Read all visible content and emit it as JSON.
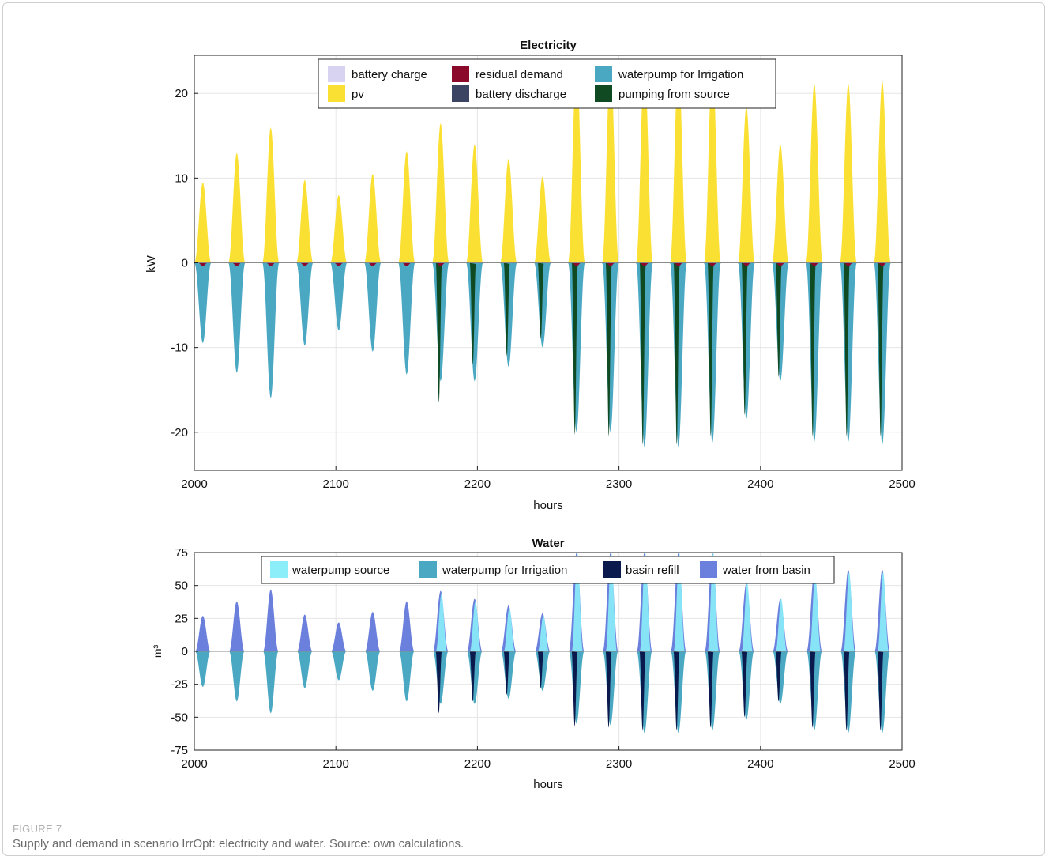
{
  "figure": {
    "label": "FIGURE 7",
    "caption": "Supply and demand in scenario IrrOpt: electricity and water. Source: own calculations."
  },
  "chart_data": [
    {
      "type": "area",
      "title": "Electricity",
      "xlabel": "hours",
      "ylabel": "kW",
      "xlim": [
        2000,
        2500
      ],
      "ylim": [
        -24.5,
        24.5
      ],
      "xticks": [
        2000,
        2100,
        2200,
        2300,
        2400,
        2500
      ],
      "yticks": [
        20,
        10,
        0,
        -10,
        -20
      ],
      "grid": true,
      "legend_position": "top-center",
      "colors": {
        "battery charge": "#d9d3f2",
        "residual demand": "#8b0a2c",
        "waterpump for Irrigation": "#4aa8c3",
        "pv": "#fbe034",
        "battery discharge": "#3b4463",
        "pumping from source": "#0f4a22"
      },
      "legend": [
        [
          "battery charge",
          "residual demand",
          "waterpump for Irrigation"
        ],
        [
          "pv",
          "battery discharge",
          "pumping from source"
        ]
      ],
      "days": [
        {
          "peak_hour": 2006,
          "pv": 9.5,
          "irrigation": -9.5,
          "source_pumping": 0,
          "residual_demand": -0.4
        },
        {
          "peak_hour": 2030,
          "pv": 13,
          "irrigation": -13,
          "source_pumping": 0,
          "residual_demand": -0.4
        },
        {
          "peak_hour": 2054,
          "pv": 16,
          "irrigation": -16,
          "source_pumping": 0,
          "residual_demand": -0.4
        },
        {
          "peak_hour": 2078,
          "pv": 9.8,
          "irrigation": -9.8,
          "source_pumping": 0,
          "residual_demand": -0.4
        },
        {
          "peak_hour": 2102,
          "pv": 8,
          "irrigation": -8,
          "source_pumping": 0,
          "residual_demand": -0.4
        },
        {
          "peak_hour": 2126,
          "pv": 10.5,
          "irrigation": -10.5,
          "source_pumping": 0,
          "residual_demand": -0.4
        },
        {
          "peak_hour": 2150,
          "pv": 13.2,
          "irrigation": -13.2,
          "source_pumping": 0,
          "residual_demand": -0.4
        },
        {
          "peak_hour": 2174,
          "pv": 16.5,
          "irrigation": -14,
          "source_pumping": -16.5,
          "residual_demand": -0.4
        },
        {
          "peak_hour": 2198,
          "pv": 14,
          "irrigation": -14,
          "source_pumping": -12,
          "residual_demand": 0
        },
        {
          "peak_hour": 2222,
          "pv": 12.3,
          "irrigation": -12.3,
          "source_pumping": -11,
          "residual_demand": 0
        },
        {
          "peak_hour": 2246,
          "pv": 10.2,
          "irrigation": -10,
          "source_pumping": -9,
          "residual_demand": 0
        },
        {
          "peak_hour": 2270,
          "pv": 24,
          "irrigation": -20,
          "source_pumping": -20.3,
          "residual_demand": -0.4
        },
        {
          "peak_hour": 2294,
          "pv": 24,
          "irrigation": -20,
          "source_pumping": -20.5,
          "residual_demand": -0.4
        },
        {
          "peak_hour": 2318,
          "pv": 24,
          "irrigation": -21.8,
          "source_pumping": -21.5,
          "residual_demand": -0.4
        },
        {
          "peak_hour": 2342,
          "pv": 24,
          "irrigation": -21.8,
          "source_pumping": -21.5,
          "residual_demand": -0.4
        },
        {
          "peak_hour": 2366,
          "pv": 24,
          "irrigation": -21.3,
          "source_pumping": -20.5,
          "residual_demand": -0.4
        },
        {
          "peak_hour": 2390,
          "pv": 18.5,
          "irrigation": -18.5,
          "source_pumping": -18,
          "residual_demand": -0.4
        },
        {
          "peak_hour": 2414,
          "pv": 14,
          "irrigation": -14,
          "source_pumping": -13.5,
          "residual_demand": -0.4
        },
        {
          "peak_hour": 2438,
          "pv": 21.2,
          "irrigation": -21.2,
          "source_pumping": -20.5,
          "residual_demand": -0.4
        },
        {
          "peak_hour": 2462,
          "pv": 21.2,
          "irrigation": -21.2,
          "source_pumping": -20.5,
          "residual_demand": -0.4
        },
        {
          "peak_hour": 2486,
          "pv": 21.5,
          "irrigation": -21.5,
          "source_pumping": -20.5,
          "residual_demand": -0.4
        }
      ]
    },
    {
      "type": "area",
      "title": "Water",
      "xlabel": "hours",
      "ylabel": "m³",
      "xlim": [
        2000,
        2500
      ],
      "ylim": [
        -75,
        75
      ],
      "xticks": [
        2000,
        2100,
        2200,
        2300,
        2400,
        2500
      ],
      "yticks": [
        75,
        50,
        25,
        0,
        -25,
        -50,
        -75
      ],
      "grid": true,
      "legend_position": "top-center",
      "colors": {
        "waterpump source": "#8beef8",
        "waterpump for Irrigation": "#4aa8c3",
        "basin refill": "#0b1a4d",
        "water from basin": "#6b7fdc"
      },
      "legend": [
        "waterpump source",
        "waterpump for Irrigation",
        "basin refill",
        "water from basin"
      ],
      "days": [
        {
          "peak_hour": 2006,
          "basin_out": 27,
          "source": 0,
          "irrigation": -27,
          "refill": 0
        },
        {
          "peak_hour": 2030,
          "basin_out": 38,
          "source": 0,
          "irrigation": -38,
          "refill": 0
        },
        {
          "peak_hour": 2054,
          "basin_out": 47,
          "source": 0,
          "irrigation": -47,
          "refill": 0
        },
        {
          "peak_hour": 2078,
          "basin_out": 28,
          "source": 0,
          "irrigation": -28,
          "refill": 0
        },
        {
          "peak_hour": 2102,
          "basin_out": 22,
          "source": 0,
          "irrigation": -22,
          "refill": 0
        },
        {
          "peak_hour": 2126,
          "basin_out": 30,
          "source": 0,
          "irrigation": -30,
          "refill": 0
        },
        {
          "peak_hour": 2150,
          "basin_out": 38,
          "source": 0,
          "irrigation": -38,
          "refill": 0
        },
        {
          "peak_hour": 2174,
          "basin_out": 46,
          "source": 44,
          "irrigation": -40,
          "refill": -47
        },
        {
          "peak_hour": 2198,
          "basin_out": 40,
          "source": 38,
          "irrigation": -40,
          "refill": -38
        },
        {
          "peak_hour": 2222,
          "basin_out": 35,
          "source": 33,
          "irrigation": -36,
          "refill": -33
        },
        {
          "peak_hour": 2246,
          "basin_out": 29,
          "source": 27,
          "irrigation": -30,
          "refill": -28
        },
        {
          "peak_hour": 2270,
          "basin_out": 75,
          "source": 75,
          "irrigation": -55,
          "refill": -57
        },
        {
          "peak_hour": 2294,
          "basin_out": 75,
          "source": 75,
          "irrigation": -56,
          "refill": -58
        },
        {
          "peak_hour": 2318,
          "basin_out": 75,
          "source": 75,
          "irrigation": -62,
          "refill": -60
        },
        {
          "peak_hour": 2342,
          "basin_out": 75,
          "source": 75,
          "irrigation": -62,
          "refill": -60
        },
        {
          "peak_hour": 2366,
          "basin_out": 75,
          "source": 75,
          "irrigation": -60,
          "refill": -58
        },
        {
          "peak_hour": 2390,
          "basin_out": 52,
          "source": 52,
          "irrigation": -52,
          "refill": -50
        },
        {
          "peak_hour": 2414,
          "basin_out": 40,
          "source": 40,
          "irrigation": -40,
          "refill": -38
        },
        {
          "peak_hour": 2438,
          "basin_out": 60,
          "source": 58,
          "irrigation": -60,
          "refill": -58
        },
        {
          "peak_hour": 2462,
          "basin_out": 62,
          "source": 60,
          "irrigation": -62,
          "refill": -60
        },
        {
          "peak_hour": 2486,
          "basin_out": 62,
          "source": 60,
          "irrigation": -62,
          "refill": -60
        }
      ]
    }
  ]
}
